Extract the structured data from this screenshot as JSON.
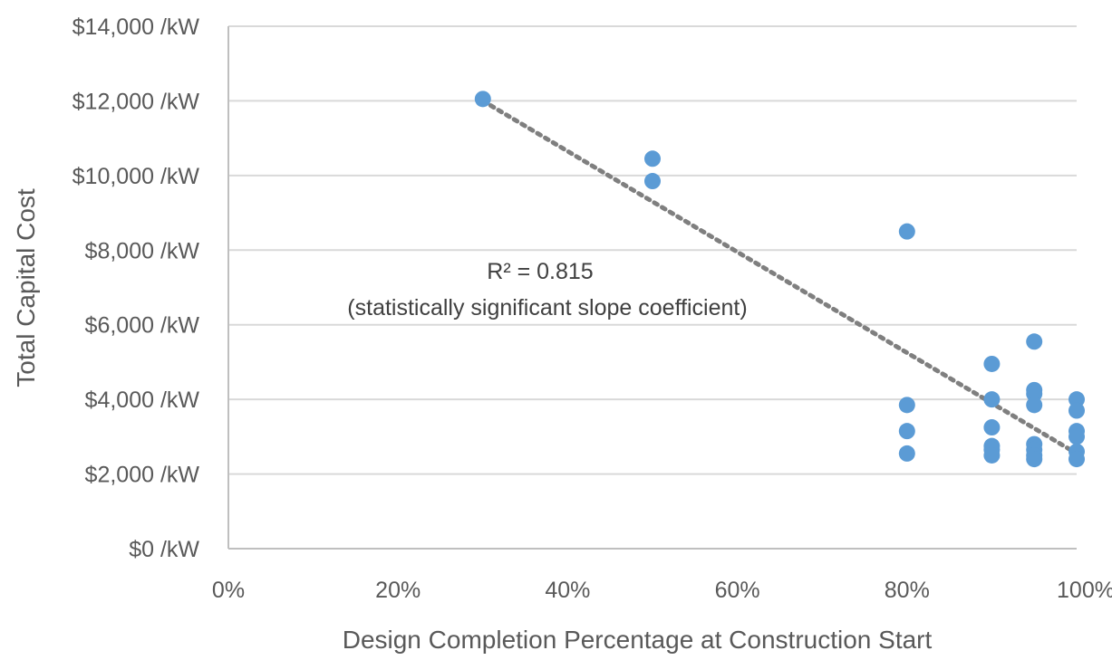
{
  "chart_data": {
    "type": "scatter",
    "title": "",
    "xlabel": "Design Completion Percentage at Construction Start",
    "ylabel": "Total Capital Cost",
    "xlim": [
      0,
      100
    ],
    "ylim": [
      0,
      14000
    ],
    "x_ticks": [
      0,
      20,
      40,
      60,
      80,
      100
    ],
    "x_tick_labels": [
      "0%",
      "20%",
      "40%",
      "60%",
      "80%",
      "100%"
    ],
    "y_ticks": [
      0,
      2000,
      4000,
      6000,
      8000,
      10000,
      12000,
      14000
    ],
    "y_tick_labels": [
      "$0 /kW",
      "$2,000 /kW",
      "$4,000 /kW",
      "$6,000 /kW",
      "$8,000 /kW",
      "$10,000 /kW",
      "$12,000 /kW",
      "$14,000 /kW"
    ],
    "grid": "horizontal",
    "legend": "none",
    "series": [
      {
        "points": [
          [
            30,
            12050
          ],
          [
            50,
            10450
          ],
          [
            50,
            9850
          ],
          [
            80,
            8500
          ],
          [
            80,
            3850
          ],
          [
            80,
            3150
          ],
          [
            80,
            2550
          ],
          [
            90,
            4950
          ],
          [
            90,
            4000
          ],
          [
            90,
            3250
          ],
          [
            90,
            2750
          ],
          [
            90,
            2650
          ],
          [
            90,
            2500
          ],
          [
            95,
            5550
          ],
          [
            95,
            4250
          ],
          [
            95,
            4150
          ],
          [
            95,
            3850
          ],
          [
            95,
            2800
          ],
          [
            95,
            2650
          ],
          [
            95,
            2500
          ],
          [
            95,
            2400
          ],
          [
            100,
            4000
          ],
          [
            100,
            3700
          ],
          [
            100,
            3150
          ],
          [
            100,
            3000
          ],
          [
            100,
            2600
          ],
          [
            100,
            2400
          ]
        ]
      }
    ],
    "trendline": {
      "style": "dotted",
      "from": [
        30,
        12000
      ],
      "to": [
        100,
        2550
      ]
    },
    "annotations": [
      "R² = 0.815",
      "(statistically significant slope coefficient)"
    ],
    "colors": {
      "marker": "#5b9bd5",
      "trendline": "#7f7f7f",
      "gridline": "#d9d9d9",
      "axis": "#bfbfbf",
      "text": "#595959"
    }
  }
}
